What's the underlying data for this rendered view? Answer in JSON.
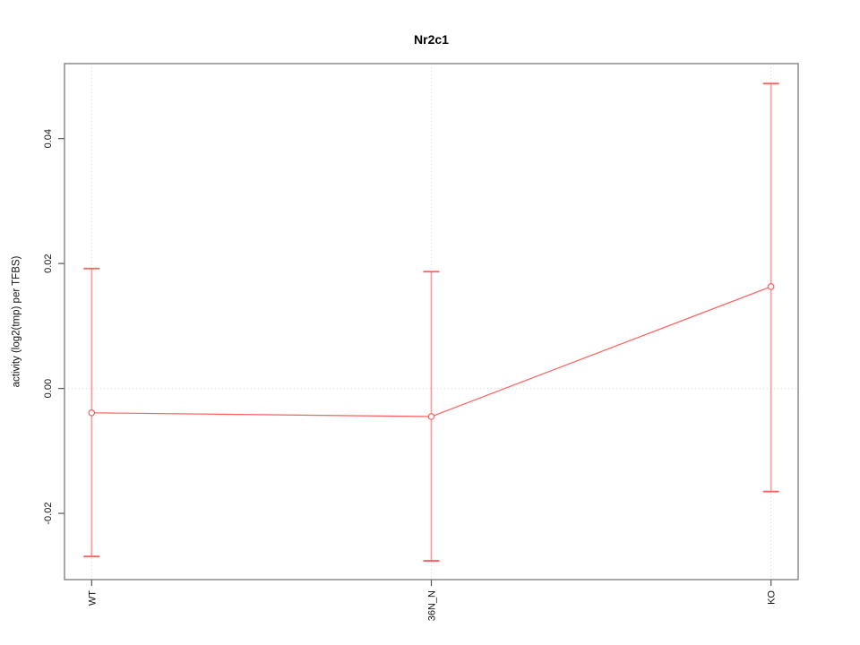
{
  "title": "Nr2c1",
  "background": "#ffffff",
  "chart_data": {
    "type": "line",
    "title": "Nr2c1",
    "xlabel": "",
    "ylabel": "activity (log2(tmp) per TFBS)",
    "categories": [
      "WT",
      "36N_N",
      "KO"
    ],
    "x": [
      1,
      2,
      3
    ],
    "xlim": [
      0.92,
      3.08
    ],
    "ylim": [
      -0.0306,
      0.052
    ],
    "yticks": [
      -0.02,
      0,
      0.02,
      0.04
    ],
    "ytick_labels": [
      "-0.02",
      "0.00",
      "0.02",
      "0.04"
    ],
    "grid": {
      "vertical_at_categories": true,
      "horizontal_at_zero": true,
      "style": "dotted"
    },
    "legend": "none",
    "marker": "open-circle",
    "series": [
      {
        "name": "Nr2c1",
        "means": [
          -0.0039,
          -0.0045,
          0.0163
        ],
        "upper": [
          0.0192,
          0.0187,
          0.0488
        ],
        "lower": [
          -0.0269,
          -0.0276,
          -0.0165
        ]
      }
    ],
    "colors": {
      "series": "#ff5e5e",
      "errorbar_stem": "#ff9898",
      "grid": "#d8d8d8",
      "box": "#7a7a7a",
      "tick": "#555555",
      "text": "#111111"
    }
  }
}
